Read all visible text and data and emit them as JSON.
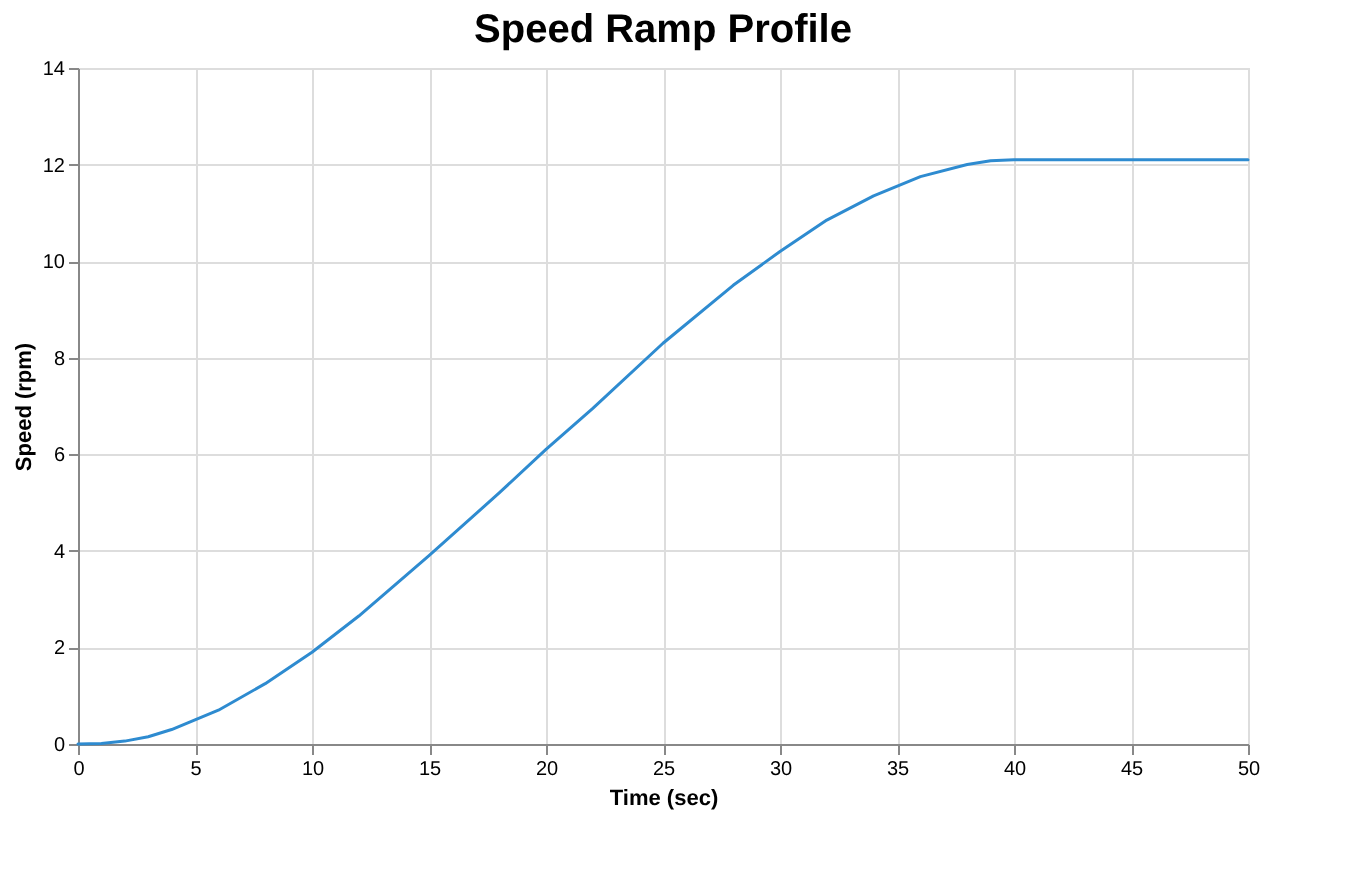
{
  "chart_data": {
    "type": "line",
    "title": "Speed Ramp Profile",
    "xlabel": "Time (sec)",
    "ylabel": "Speed (rpm)",
    "x": [
      0,
      1,
      2,
      3,
      4,
      5,
      6,
      8,
      10,
      12,
      15,
      18,
      20,
      22,
      25,
      28,
      30,
      32,
      34,
      36,
      38,
      39,
      40,
      45,
      50
    ],
    "series": [
      {
        "color": "#2e8bd0",
        "values": [
          0,
          0.01,
          0.06,
          0.15,
          0.3,
          0.5,
          0.7,
          1.25,
          1.9,
          2.65,
          3.9,
          5.2,
          6.1,
          6.95,
          8.3,
          9.5,
          10.2,
          10.85,
          11.35,
          11.75,
          12.0,
          12.08,
          12.1,
          12.1,
          12.1
        ]
      }
    ],
    "xlim": [
      0,
      50
    ],
    "xticks": [
      0,
      5,
      10,
      15,
      20,
      25,
      30,
      35,
      40,
      45,
      50
    ],
    "ylim": [
      0,
      14
    ],
    "yticks": [
      0,
      2,
      4,
      6,
      8,
      10,
      12,
      14
    ],
    "grid": true,
    "line_style": "solid",
    "marker": "none"
  }
}
